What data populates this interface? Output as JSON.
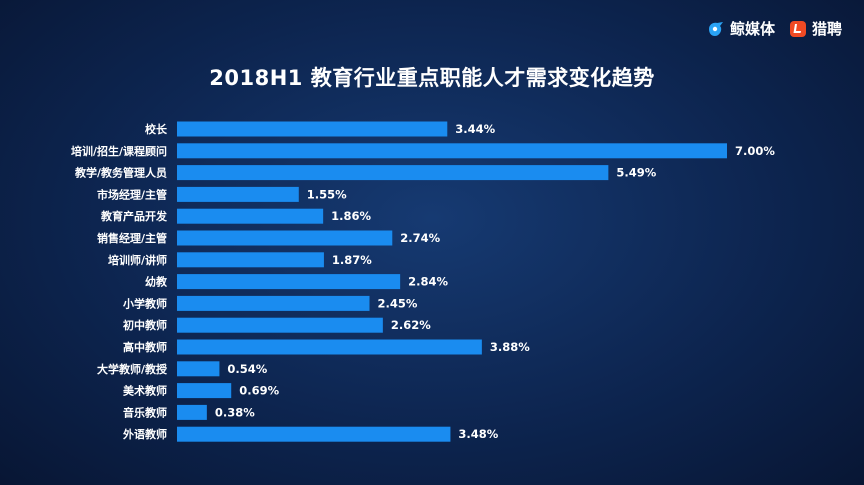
{
  "brand": {
    "logo1": "鲸媒体",
    "logo2": "猎聘"
  },
  "chart_data": {
    "type": "bar",
    "orientation": "horizontal",
    "title": "2018H1 教育行业重点职能人才需求变化趋势",
    "categories": [
      "校长",
      "培训/招生/课程顾问",
      "教学/教务管理人员",
      "市场经理/主管",
      "教育产品开发",
      "销售经理/主管",
      "培训师/讲师",
      "幼教",
      "小学教师",
      "初中教师",
      "高中教师",
      "大学教师/教授",
      "美术教师",
      "音乐教师",
      "外语教师"
    ],
    "values": [
      3.44,
      7.0,
      5.49,
      1.55,
      1.86,
      2.74,
      1.87,
      2.84,
      2.45,
      2.62,
      3.88,
      0.54,
      0.69,
      0.38,
      3.48
    ],
    "value_labels": [
      "3.44%",
      "7.00%",
      "5.49%",
      "1.55%",
      "1.86%",
      "2.74%",
      "1.87%",
      "2.84%",
      "2.45%",
      "2.62%",
      "3.88%",
      "0.54%",
      "0.69%",
      "0.38%",
      "3.48%"
    ],
    "xlim": [
      0,
      7.0
    ],
    "grid": false,
    "bar_color": "#1a8cf0"
  }
}
